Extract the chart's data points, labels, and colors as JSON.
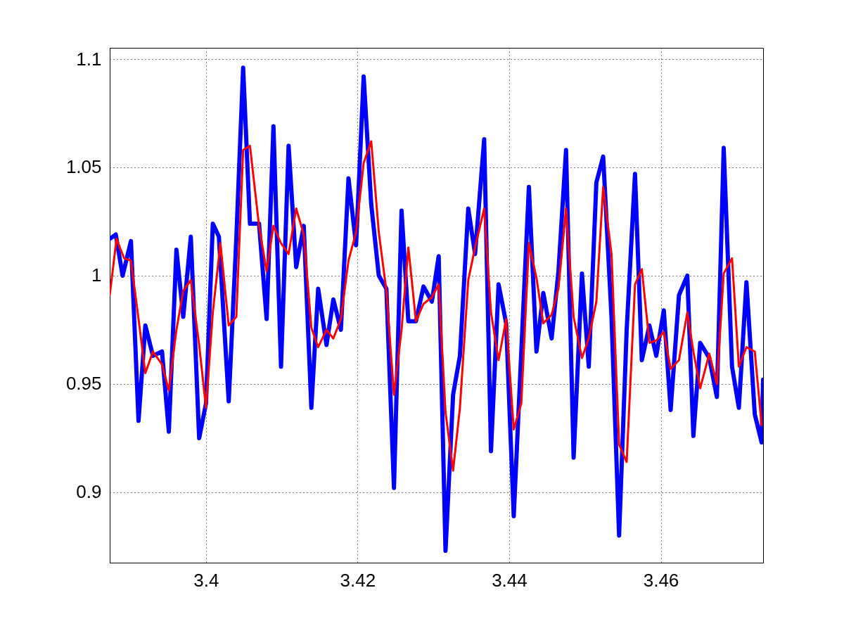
{
  "chart_data": {
    "type": "line",
    "xlim": [
      3.3873,
      3.4735
    ],
    "ylim": [
      0.8675,
      1.1052
    ],
    "xticks": [
      3.4,
      3.42,
      3.44,
      3.46
    ],
    "yticks": [
      0.9,
      0.95,
      1,
      1.05,
      1.1
    ],
    "grid": true,
    "marker": "none",
    "line_style": "solid",
    "series": [
      {
        "color": "#0000ff",
        "x": [
          3.3873,
          3.3881,
          3.389,
          3.3901,
          3.3911,
          3.392,
          3.393,
          3.3942,
          3.3951,
          3.3961,
          3.397,
          3.398,
          3.3991,
          3.4,
          3.4009,
          3.4017,
          3.403,
          3.404,
          3.4049,
          3.4058,
          3.407,
          3.408,
          3.4089,
          3.4099,
          3.4109,
          3.4119,
          3.4129,
          3.4139,
          3.4148,
          3.4159,
          3.4168,
          3.4178,
          3.4188,
          3.4198,
          3.4208,
          3.4218,
          3.4228,
          3.4238,
          3.4248,
          3.4258,
          3.4267,
          3.4277,
          3.4287,
          3.4298,
          3.4307,
          3.4316,
          3.4326,
          3.4335,
          3.4346,
          3.4355,
          3.4367,
          3.4376,
          3.4386,
          3.4396,
          3.4406,
          3.4416,
          3.4426,
          3.4436,
          3.4445,
          3.4456,
          3.4465,
          3.4475,
          3.4485,
          3.4496,
          3.4505,
          3.4515,
          3.4524,
          3.4535,
          3.4545,
          3.4555,
          3.4566,
          3.4575,
          3.4585,
          3.4594,
          3.4604,
          3.4613,
          3.4624,
          3.4635,
          3.4643,
          3.4652,
          3.4664,
          3.4674,
          3.4683,
          3.4694,
          3.4703,
          3.4713,
          3.4724,
          3.4733,
          3.4735
        ],
        "values": [
          1.017,
          1.019,
          1.0,
          1.016,
          0.933,
          0.977,
          0.963,
          0.965,
          0.928,
          1.012,
          0.981,
          1.018,
          0.925,
          0.941,
          1.024,
          1.018,
          0.942,
          1.017,
          1.096,
          1.024,
          1.024,
          0.98,
          1.069,
          0.958,
          1.06,
          1.004,
          1.023,
          0.939,
          0.994,
          0.968,
          0.989,
          0.975,
          1.045,
          1.014,
          1.092,
          1.033,
          1.0,
          0.994,
          0.902,
          1.03,
          0.979,
          0.979,
          0.995,
          0.988,
          1.009,
          0.873,
          0.945,
          0.963,
          1.031,
          1.01,
          1.063,
          0.919,
          0.996,
          0.978,
          0.889,
          0.965,
          1.041,
          0.965,
          0.992,
          0.971,
          1.002,
          1.058,
          0.916,
          1.001,
          0.958,
          1.043,
          1.055,
          0.981,
          0.88,
          0.975,
          1.047,
          0.961,
          0.977,
          0.963,
          0.984,
          0.938,
          0.991,
          1.0,
          0.926,
          0.969,
          0.962,
          0.944,
          1.059,
          0.958,
          0.939,
          0.997,
          0.936,
          0.923,
          0.952
        ]
      },
      {
        "color": "#ff0000",
        "x": [
          3.3873,
          3.3882,
          3.3892,
          3.3901,
          3.3911,
          3.392,
          3.393,
          3.3942,
          3.3951,
          3.3961,
          3.397,
          3.398,
          3.3991,
          3.4,
          3.4009,
          3.4019,
          3.403,
          3.404,
          3.4049,
          3.4058,
          3.407,
          3.408,
          3.4089,
          3.4099,
          3.4109,
          3.4119,
          3.4129,
          3.4139,
          3.4148,
          3.4159,
          3.4168,
          3.4178,
          3.4188,
          3.4198,
          3.4208,
          3.4218,
          3.4228,
          3.4238,
          3.4248,
          3.4258,
          3.4267,
          3.4277,
          3.4287,
          3.4298,
          3.4307,
          3.4316,
          3.4326,
          3.4335,
          3.4346,
          3.4355,
          3.4367,
          3.4376,
          3.4386,
          3.4396,
          3.4406,
          3.4416,
          3.4426,
          3.4436,
          3.4445,
          3.4456,
          3.4465,
          3.4475,
          3.4485,
          3.4496,
          3.4505,
          3.4515,
          3.4524,
          3.4535,
          3.4545,
          3.4555,
          3.4566,
          3.4575,
          3.4585,
          3.4594,
          3.4604,
          3.4613,
          3.4624,
          3.4635,
          3.4643,
          3.4652,
          3.4664,
          3.4674,
          3.4683,
          3.4694,
          3.4703,
          3.4713,
          3.4724,
          3.4733
        ],
        "values": [
          0.991,
          1.017,
          1.008,
          1.007,
          0.98,
          0.955,
          0.965,
          0.959,
          0.947,
          0.975,
          0.993,
          0.998,
          0.968,
          0.939,
          0.983,
          1.015,
          0.977,
          0.981,
          1.058,
          1.06,
          1.023,
          1.002,
          1.023,
          1.015,
          1.01,
          1.031,
          1.019,
          0.976,
          0.967,
          0.975,
          0.971,
          0.98,
          1.007,
          1.02,
          1.052,
          1.062,
          1.02,
          0.993,
          0.945,
          0.975,
          1.013,
          0.979,
          0.987,
          0.99,
          0.996,
          0.937,
          0.91,
          0.939,
          0.998,
          1.013,
          1.031,
          0.983,
          0.961,
          0.98,
          0.929,
          0.941,
          1.015,
          0.999,
          0.978,
          0.982,
          0.994,
          1.031,
          0.981,
          0.962,
          0.971,
          0.988,
          1.041,
          1.01,
          0.922,
          0.914,
          0.996,
          1.003,
          0.969,
          0.97,
          0.974,
          0.957,
          0.961,
          0.983,
          0.965,
          0.948,
          0.964,
          0.95,
          1.001,
          1.008,
          0.958,
          0.967,
          0.965,
          0.931
        ]
      }
    ]
  }
}
